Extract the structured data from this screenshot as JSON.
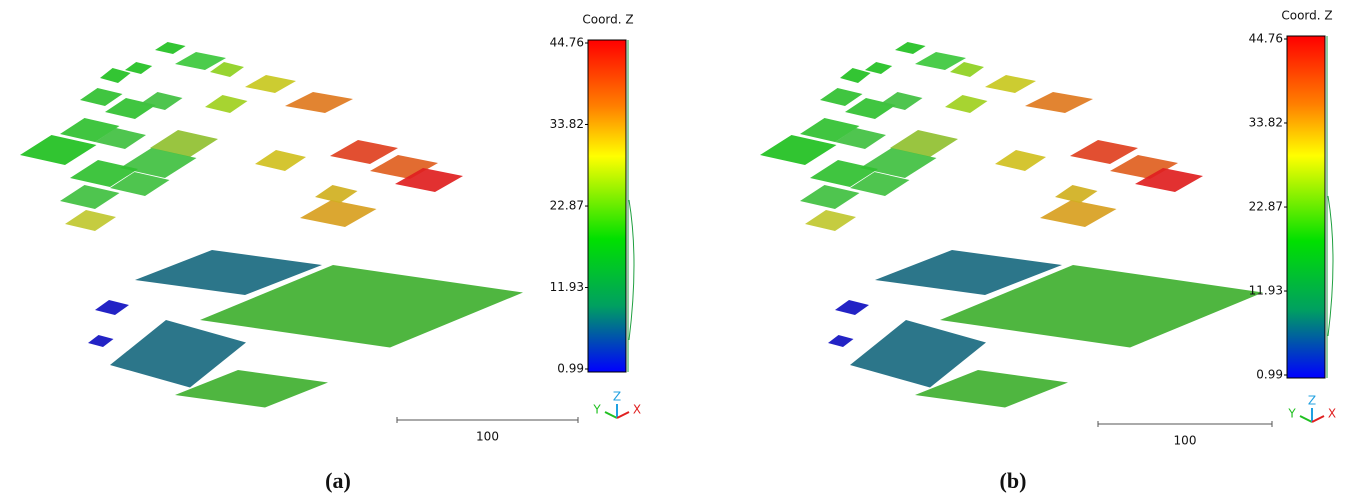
{
  "panels": [
    {
      "colorbar": {
        "title": "Coord. Z",
        "ticks": [
          44.76,
          33.82,
          22.87,
          11.93,
          0.99
        ]
      },
      "scale_label": "100",
      "axes": {
        "y": "Y",
        "z": "Z",
        "x": "X"
      },
      "caption": "(a)"
    },
    {
      "colorbar": {
        "title": "Coord. Z",
        "ticks": [
          44.76,
          33.82,
          22.87,
          11.93,
          0.99
        ]
      },
      "scale_label": "100",
      "axes": {
        "y": "Y",
        "z": "Z",
        "x": "X"
      },
      "caption": "(b)"
    }
  ]
}
